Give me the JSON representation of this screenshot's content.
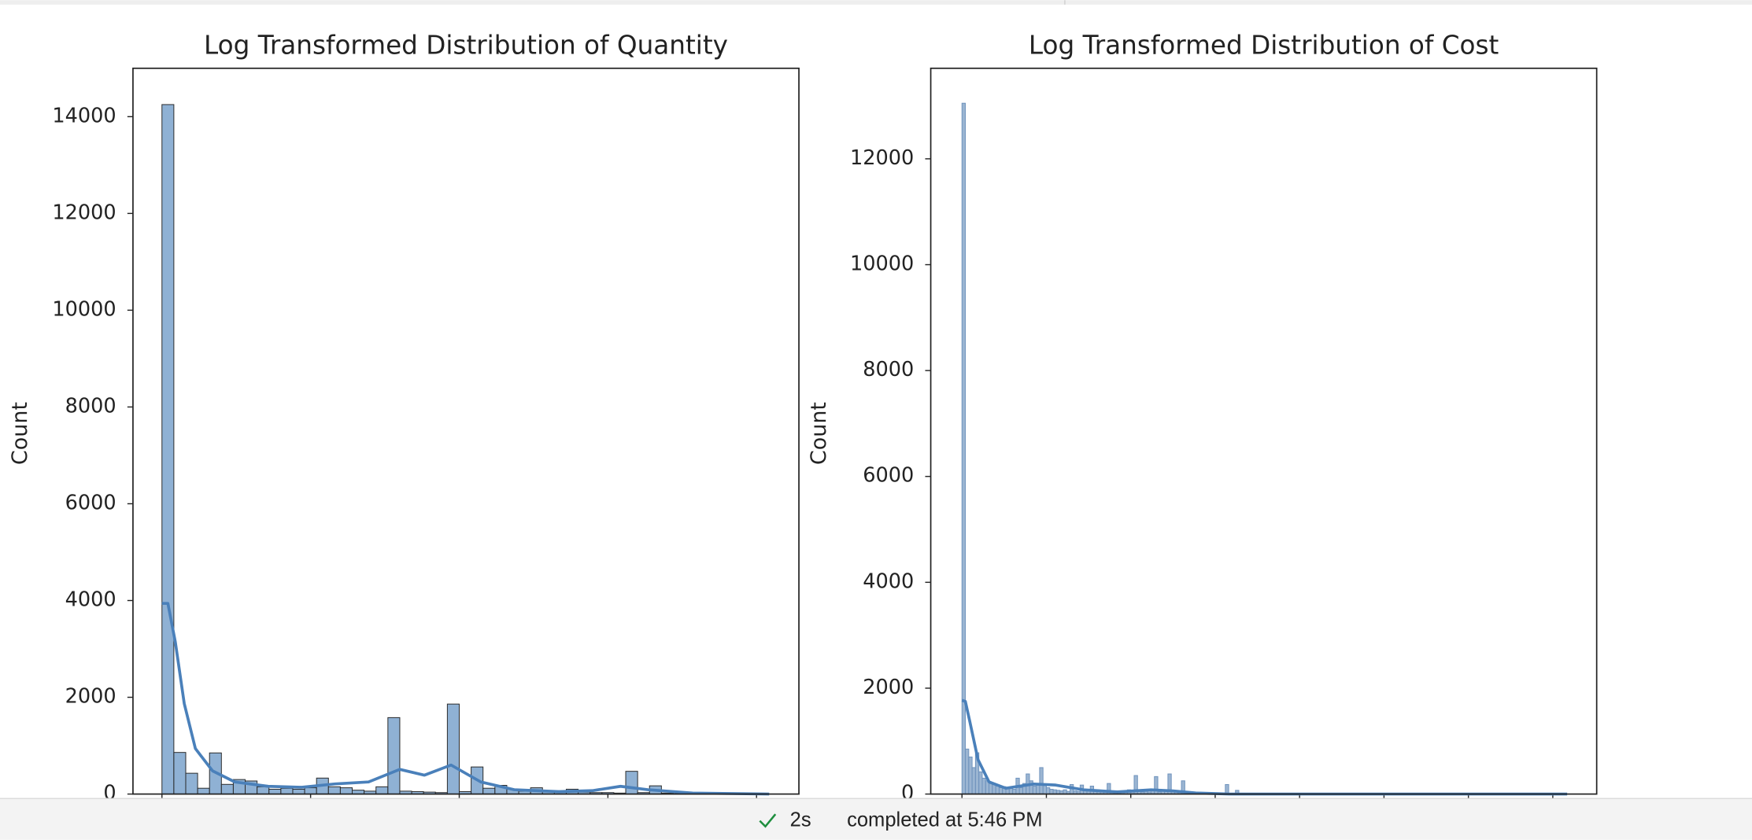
{
  "chart_data": [
    {
      "type": "histogram",
      "title": "Log Transformed Distribution of Quantity",
      "ylabel": "Count",
      "bins": [
        0,
        0.16,
        0.32,
        0.48,
        0.64,
        0.8,
        0.96,
        1.12,
        1.28,
        1.44,
        1.6,
        1.76,
        1.92,
        2.08,
        2.24,
        2.4,
        2.56,
        2.72,
        2.88,
        3.04,
        3.2,
        3.36,
        3.52,
        3.68,
        3.84,
        4,
        4.16,
        4.32,
        4.48,
        4.64,
        4.8,
        4.96,
        5.12,
        5.28,
        5.44,
        5.6,
        5.76,
        5.92,
        6.08,
        6.24,
        6.4,
        6.56,
        6.72,
        6.88,
        7.04,
        7.2,
        7.36,
        7.52,
        7.68,
        7.84,
        8
      ],
      "values": [
        14250,
        860,
        430,
        120,
        850,
        200,
        300,
        270,
        150,
        100,
        120,
        100,
        130,
        330,
        150,
        130,
        80,
        60,
        150,
        1580,
        60,
        50,
        40,
        30,
        1860,
        50,
        560,
        120,
        180,
        100,
        60,
        130,
        60,
        40,
        100,
        40,
        30,
        30,
        20,
        470,
        30,
        170,
        20,
        10,
        5,
        5,
        5,
        3,
        3,
        2
      ],
      "color": "#7ba3cc",
      "edgecolor": "#2b2b2b",
      "kde_color": "#4a80ba",
      "kde": {
        "x": [
          0,
          0.08,
          0.18,
          0.3,
          0.45,
          0.68,
          0.98,
          1.43,
          1.88,
          2.33,
          2.78,
          3.2,
          3.53,
          3.89,
          4.29,
          4.74,
          5.34,
          5.79,
          6.17,
          6.54,
          7.14,
          8.17
        ],
        "values": [
          3940,
          3940,
          3140,
          1870,
          940,
          480,
          250,
          160,
          140,
          210,
          250,
          510,
          390,
          600,
          250,
          90,
          50,
          70,
          160,
          90,
          20,
          0
        ]
      },
      "xlim": [
        -0.39,
        8.57
      ],
      "xticks": [
        0,
        2,
        4,
        6,
        8
      ],
      "ylim": [
        0,
        15000
      ],
      "yticks": [
        0,
        2000,
        4000,
        6000,
        8000,
        10000,
        12000,
        14000
      ]
    },
    {
      "type": "histogram",
      "title": "Log Transformed Distribution of Cost",
      "ylabel": "Count",
      "bins": [
        0,
        0.04,
        0.08,
        0.12,
        0.16,
        0.2,
        0.24,
        0.28,
        0.32,
        0.36,
        0.4,
        0.44,
        0.48,
        0.52,
        0.56,
        0.6,
        0.64,
        0.68,
        0.72,
        0.76,
        0.8,
        0.84,
        0.88,
        0.92,
        0.96,
        1,
        1.04,
        1.08,
        1.12,
        1.16,
        1.2,
        1.24,
        1.28,
        1.32,
        1.36,
        1.4,
        1.44,
        1.48,
        1.52,
        1.56,
        1.6,
        1.64,
        1.68,
        1.72,
        1.76,
        1.8,
        1.84,
        1.88,
        1.92,
        1.96,
        2,
        2.04,
        2.08,
        2.12,
        2.16,
        2.2,
        2.24,
        2.28,
        2.32,
        2.36,
        2.4,
        2.44,
        2.48,
        2.52,
        2.56,
        2.6,
        2.64,
        2.68,
        2.72,
        2.76,
        2.8,
        2.84,
        2.88,
        2.92,
        2.96,
        3,
        3.04,
        3.08,
        3.12,
        3.16,
        3.2,
        3.24,
        3.28,
        3.32,
        3.36,
        3.4
      ],
      "values": [
        13050,
        850,
        700,
        500,
        780,
        420,
        300,
        250,
        200,
        180,
        150,
        120,
        140,
        100,
        110,
        90,
        300,
        120,
        200,
        380,
        250,
        150,
        200,
        500,
        180,
        120,
        90,
        80,
        70,
        60,
        80,
        50,
        180,
        60,
        50,
        170,
        60,
        80,
        150,
        60,
        50,
        60,
        40,
        200,
        60,
        50,
        40,
        60,
        50,
        80,
        40,
        350,
        60,
        40,
        50,
        40,
        60,
        330,
        40,
        60,
        50,
        380,
        50,
        40,
        30,
        250,
        30,
        20,
        20,
        20,
        20,
        15,
        10,
        10,
        10,
        15,
        10,
        10,
        180,
        10,
        10,
        70,
        10,
        5,
        5
      ],
      "color": "#8aa8ca",
      "edgecolor": "#6f93bd",
      "kde_color": "#4a80ba",
      "kde": {
        "x": [
          0,
          0.04,
          0.09,
          0.19,
          0.32,
          0.52,
          0.85,
          1.11,
          1.44,
          1.84,
          2.24,
          2.5,
          2.77,
          3.17,
          4.49,
          7.17
        ],
        "values": [
          1770,
          1750,
          1390,
          650,
          230,
          110,
          190,
          170,
          80,
          40,
          80,
          60,
          20,
          0,
          0,
          0
        ]
      },
      "xlim": [
        -0.37,
        7.52
      ],
      "xticks": [
        0,
        1,
        2,
        3,
        4,
        5,
        6,
        7
      ],
      "ylim": [
        0,
        13710
      ],
      "yticks": [
        0,
        2000,
        4000,
        6000,
        8000,
        10000,
        12000
      ]
    }
  ],
  "status_bar": {
    "duration": "2s",
    "message": "completed at 5:46 PM"
  }
}
